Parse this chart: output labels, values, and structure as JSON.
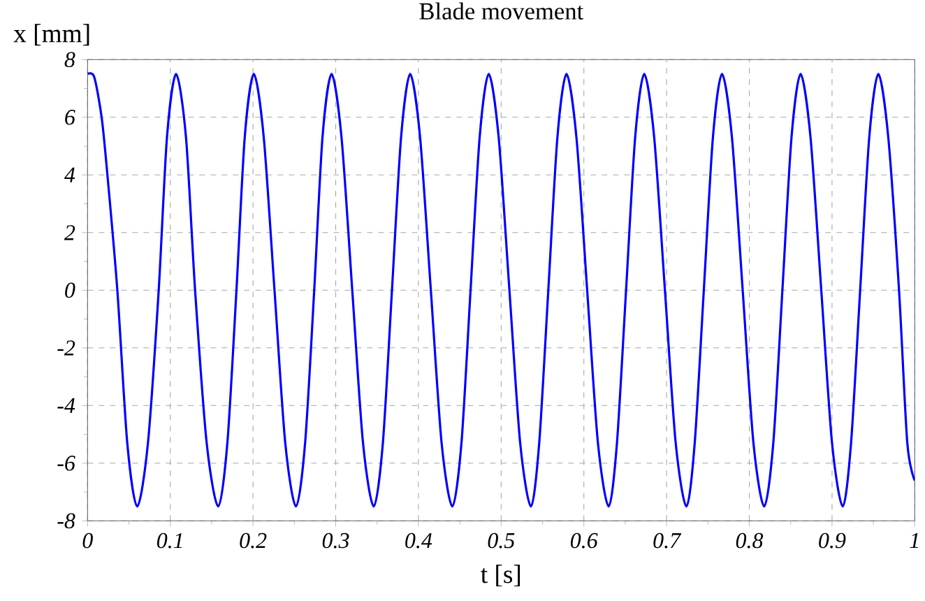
{
  "chart_data": {
    "type": "line",
    "title": "Blade movement",
    "xlabel": "t [s]",
    "ylabel": "x [mm]",
    "x": [
      0,
      0.008,
      0.017,
      0.024,
      0.036,
      0.048,
      0.06,
      0.073,
      0.086,
      0.096,
      0.107,
      0.119,
      0.13,
      0.144,
      0.158,
      0.169,
      0.18,
      0.19,
      0.201,
      0.213,
      0.226,
      0.239,
      0.252,
      0.263,
      0.274,
      0.284,
      0.295,
      0.307,
      0.32,
      0.333,
      0.346,
      0.357,
      0.368,
      0.379,
      0.39,
      0.402,
      0.415,
      0.428,
      0.441,
      0.452,
      0.463,
      0.474,
      0.485,
      0.497,
      0.51,
      0.523,
      0.536,
      0.546,
      0.557,
      0.568,
      0.579,
      0.591,
      0.604,
      0.617,
      0.63,
      0.64,
      0.651,
      0.662,
      0.673,
      0.685,
      0.698,
      0.711,
      0.724,
      0.734,
      0.745,
      0.756,
      0.767,
      0.779,
      0.792,
      0.805,
      0.818,
      0.829,
      0.84,
      0.851,
      0.862,
      0.874,
      0.887,
      0.9,
      0.913,
      0.923,
      0.934,
      0.945,
      0.956,
      0.968,
      0.981,
      0.991,
      1.0
    ],
    "values": [
      7.5,
      7.4,
      6,
      4,
      0,
      -5.3,
      -7.5,
      -5.3,
      0,
      5.3,
      7.5,
      5.3,
      0,
      -5.3,
      -7.5,
      -5.3,
      0,
      5.3,
      7.5,
      5.3,
      0,
      -5.3,
      -7.5,
      -5.3,
      0,
      5.3,
      7.5,
      5.3,
      0,
      -5.3,
      -7.5,
      -5.3,
      0,
      5.3,
      7.5,
      5.3,
      0,
      -5.3,
      -7.5,
      -5.3,
      0,
      5.3,
      7.5,
      5.3,
      0,
      -5.3,
      -7.5,
      -5.3,
      0,
      5.3,
      7.5,
      5.3,
      0,
      -5.3,
      -7.5,
      -5.3,
      0,
      5.3,
      7.5,
      5.3,
      0,
      -5.3,
      -7.5,
      -5.3,
      0,
      5.3,
      7.5,
      5.3,
      0,
      -5.3,
      -7.5,
      -5.3,
      0,
      5.3,
      7.5,
      5.3,
      0,
      -5.3,
      -7.5,
      -5.3,
      0,
      5.3,
      7.5,
      5.3,
      0,
      -5.3,
      -6.6
    ],
    "color": "#0000ff",
    "line_style": "solid",
    "xlim": [
      0,
      1
    ],
    "ylim": [
      -8,
      8
    ],
    "xticks": [
      0,
      0.1,
      0.2,
      0.3,
      0.4,
      0.5,
      0.6,
      0.7,
      0.8,
      0.9,
      1
    ],
    "yticks": [
      -8,
      -6,
      -4,
      -2,
      0,
      2,
      4,
      6,
      8
    ],
    "grid": true
  }
}
